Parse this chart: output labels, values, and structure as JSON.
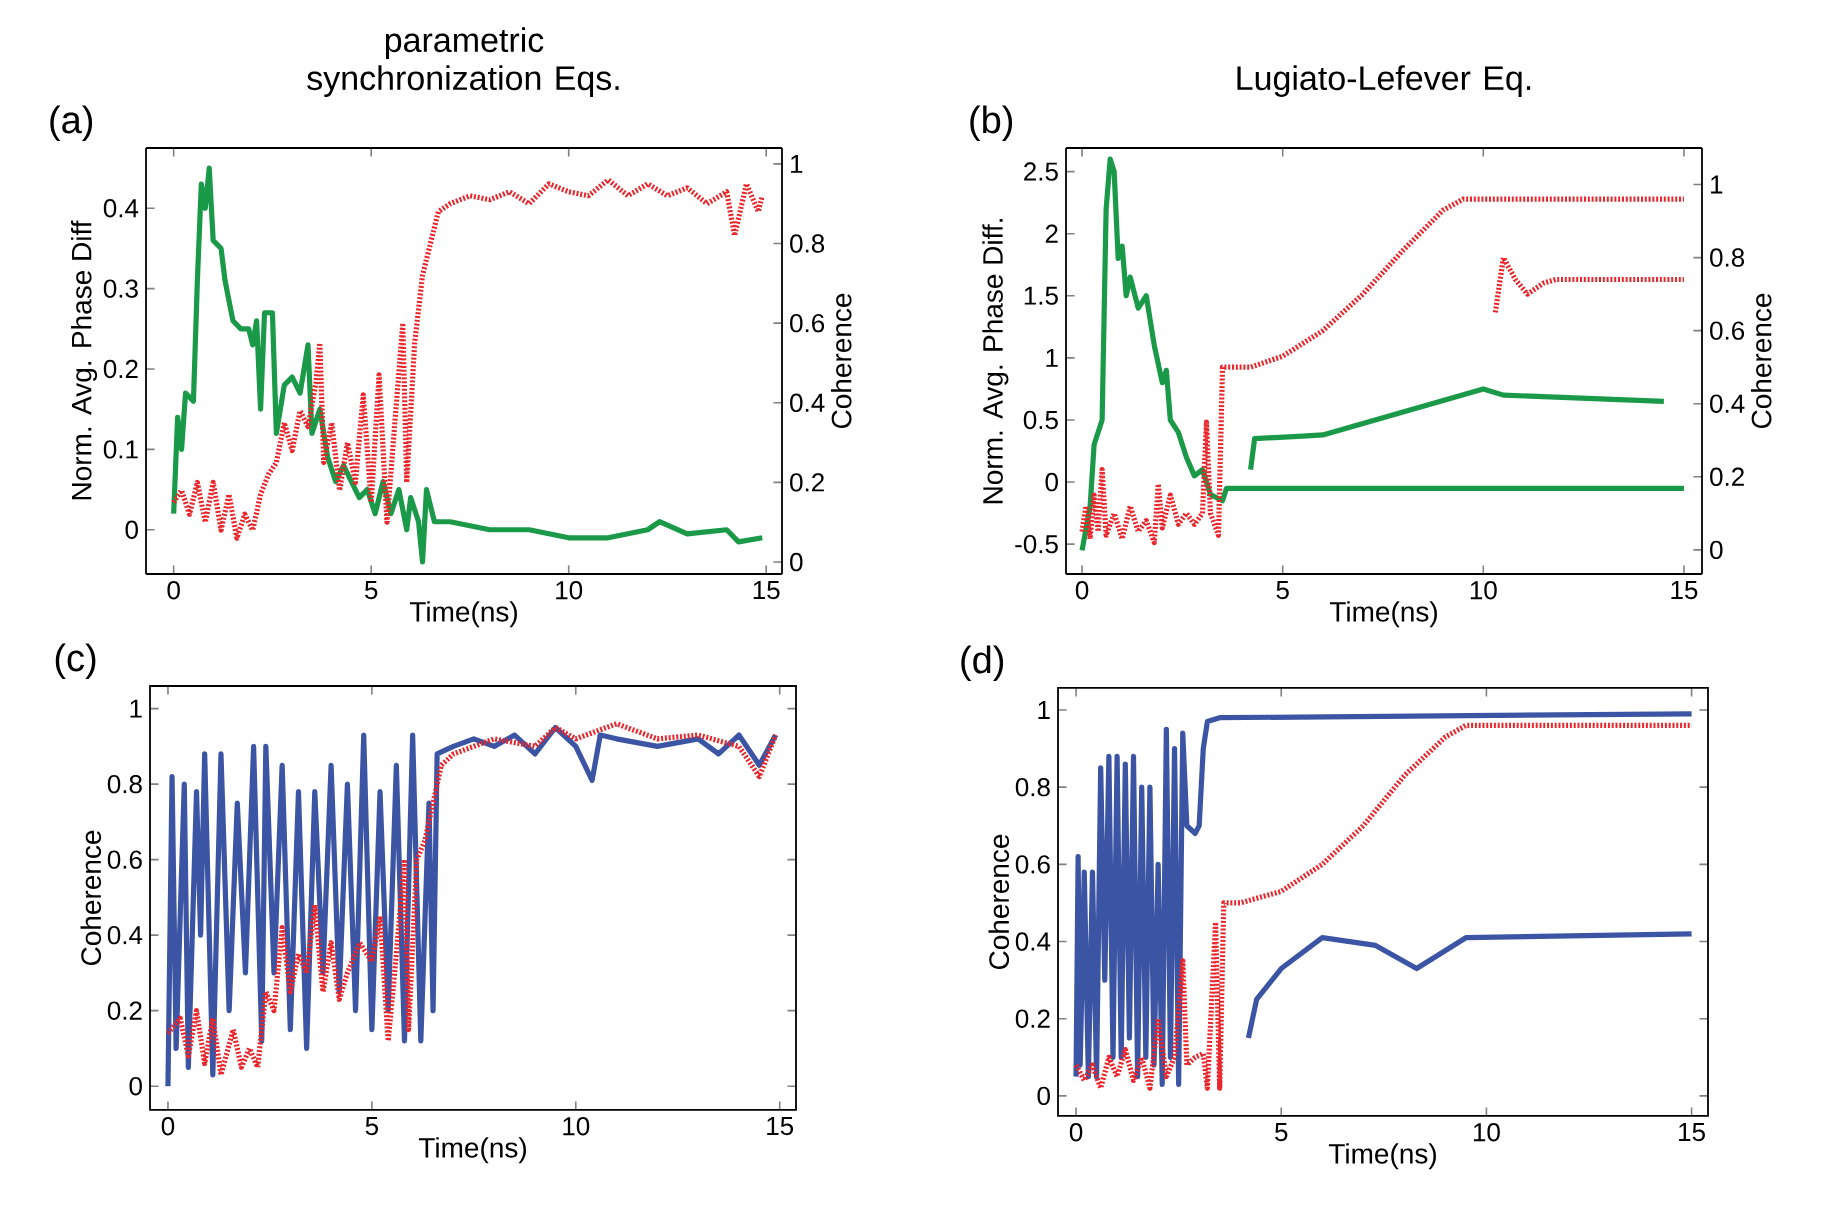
{
  "chart_data": [
    {
      "type": "line",
      "title": "parametric synchronization Eqs.",
      "xlabel": "Time(ns)",
      "ylabel": "Norm. Avg. Phase Diff",
      "y2label": "Coherence",
      "annotations": [
        "(a)"
      ],
      "xlim": [
        -0.7,
        15.4
      ],
      "ylim": [
        -0.055,
        0.475
      ],
      "y2lim": [
        -0.03,
        1.04
      ],
      "xticks": [
        0,
        5,
        10,
        15
      ],
      "yticks": [
        0,
        0.1,
        0.2,
        0.3,
        0.4
      ],
      "y2ticks": [
        0,
        0.2,
        0.4,
        0.6,
        0.8,
        1
      ],
      "series": [
        {
          "color": "#1a9a48",
          "line_style": "solid",
          "x": [
            0,
            0.1,
            0.2,
            0.3,
            0.5,
            0.6,
            0.7,
            0.8,
            0.9,
            1.0,
            1.2,
            1.3,
            1.5,
            1.7,
            1.9,
            2.0,
            2.1,
            2.2,
            2.3,
            2.5,
            2.6,
            2.8,
            3.0,
            3.2,
            3.4,
            3.5,
            3.7,
            3.9,
            4.1,
            4.3,
            4.5,
            4.7,
            4.9,
            5.1,
            5.3,
            5.5,
            5.7,
            5.9,
            6.0,
            6.2,
            6.3,
            6.4,
            6.6,
            7,
            8,
            9,
            10,
            11,
            12,
            12.3,
            13,
            14,
            14.3,
            14.9
          ],
          "values": [
            0.02,
            0.14,
            0.1,
            0.17,
            0.16,
            0.31,
            0.43,
            0.4,
            0.45,
            0.36,
            0.35,
            0.31,
            0.26,
            0.25,
            0.25,
            0.23,
            0.26,
            0.15,
            0.27,
            0.27,
            0.12,
            0.18,
            0.19,
            0.17,
            0.23,
            0.12,
            0.15,
            0.09,
            0.06,
            0.08,
            0.06,
            0.04,
            0.05,
            0.02,
            0.06,
            0.02,
            0.05,
            0.0,
            0.04,
            0.01,
            -0.04,
            0.05,
            0.01,
            0.01,
            0.0,
            0.0,
            -0.01,
            -0.01,
            0.0,
            0.01,
            -0.005,
            0.0,
            -0.015,
            -0.01
          ]
        },
        {
          "color": "#e8262b",
          "line_style": "dotted",
          "axis": "y2",
          "x": [
            0,
            0.2,
            0.4,
            0.6,
            0.8,
            1.0,
            1.2,
            1.4,
            1.6,
            1.8,
            2.0,
            2.2,
            2.4,
            2.6,
            2.8,
            3.0,
            3.2,
            3.4,
            3.6,
            3.7,
            3.8,
            4.0,
            4.2,
            4.4,
            4.6,
            4.8,
            5.0,
            5.2,
            5.4,
            5.6,
            5.8,
            5.9,
            6.1,
            6.3,
            6.5,
            6.7,
            7,
            7.5,
            8,
            8.5,
            9,
            9.5,
            10,
            10.5,
            11,
            11.5,
            12,
            12.5,
            13,
            13.5,
            14,
            14.2,
            14.5,
            14.8,
            14.9
          ],
          "values": [
            0.15,
            0.18,
            0.12,
            0.2,
            0.1,
            0.2,
            0.08,
            0.17,
            0.06,
            0.12,
            0.08,
            0.17,
            0.22,
            0.25,
            0.35,
            0.28,
            0.38,
            0.34,
            0.45,
            0.55,
            0.25,
            0.35,
            0.18,
            0.3,
            0.2,
            0.42,
            0.15,
            0.47,
            0.1,
            0.35,
            0.6,
            0.2,
            0.55,
            0.72,
            0.8,
            0.88,
            0.9,
            0.92,
            0.91,
            0.93,
            0.9,
            0.95,
            0.93,
            0.92,
            0.96,
            0.92,
            0.95,
            0.92,
            0.94,
            0.9,
            0.93,
            0.82,
            0.95,
            0.88,
            0.92
          ]
        }
      ]
    },
    {
      "type": "line",
      "title": "Lugiato-Lefever Eq.",
      "xlabel": "Time(ns)",
      "ylabel": "Norm. Avg. Phase Diff.",
      "y2label": "Coherence",
      "annotations": [
        "(b)"
      ],
      "xlim": [
        -0.4,
        15.45
      ],
      "ylim": [
        -0.74,
        2.69
      ],
      "y2lim": [
        -0.066,
        1.1
      ],
      "xticks": [
        0,
        5,
        10,
        15
      ],
      "yticks": [
        -0.5,
        0,
        0.5,
        1,
        1.5,
        2,
        2.5
      ],
      "y2ticks": [
        0,
        0.2,
        0.4,
        0.6,
        0.8,
        1
      ],
      "series": [
        {
          "color": "#1a9a48",
          "line_style": "solid",
          "x": [
            0,
            0.2,
            0.3,
            0.5,
            0.6,
            0.7,
            0.8,
            0.9,
            1.0,
            1.1,
            1.2,
            1.4,
            1.6,
            1.7,
            1.8,
            2.0,
            2.1,
            2.2,
            2.4,
            2.6,
            2.8,
            3.0,
            3.2,
            3.5,
            3.6,
            4,
            15
          ],
          "values": [
            -0.55,
            -0.2,
            0.3,
            0.5,
            2.2,
            2.6,
            2.5,
            1.8,
            1.9,
            1.5,
            1.65,
            1.4,
            1.5,
            1.3,
            1.1,
            0.8,
            0.9,
            0.5,
            0.4,
            0.2,
            0.05,
            0.1,
            -0.1,
            -0.15,
            -0.05,
            -0.05,
            -0.05
          ]
        },
        {
          "color": "#e8262b",
          "line_style": "dotted",
          "axis": "y2",
          "x": [
            0,
            0.1,
            0.2,
            0.3,
            0.4,
            0.5,
            0.6,
            0.8,
            1.0,
            1.2,
            1.4,
            1.6,
            1.8,
            1.9,
            2.0,
            2.2,
            2.4,
            2.6,
            2.8,
            3.0,
            3.1,
            3.2,
            3.4,
            3.5,
            3.7,
            4.2,
            5,
            6,
            7,
            8,
            9,
            9.5,
            15
          ],
          "values": [
            0.05,
            0.12,
            0.03,
            0.15,
            0.05,
            0.22,
            0.04,
            0.1,
            0.03,
            0.12,
            0.05,
            0.08,
            0.02,
            0.18,
            0.06,
            0.15,
            0.07,
            0.1,
            0.07,
            0.1,
            0.35,
            0.1,
            0.04,
            0.5,
            0.5,
            0.5,
            0.53,
            0.6,
            0.7,
            0.82,
            0.93,
            0.96,
            0.96
          ]
        },
        {
          "color": "#1a9a48",
          "line_style": "solid",
          "x": [
            4.2,
            4.3,
            5.5,
            6,
            10,
            10.5,
            14.5
          ],
          "values": [
            0.1,
            0.35,
            0.37,
            0.38,
            0.75,
            0.7,
            0.65
          ]
        },
        {
          "color": "#e8262b",
          "line_style": "dotted",
          "axis": "y2",
          "x": [
            10.3,
            10.5,
            10.8,
            11.1,
            11.5,
            11.8,
            15
          ],
          "values": [
            0.65,
            0.8,
            0.74,
            0.7,
            0.73,
            0.74,
            0.74
          ]
        }
      ]
    },
    {
      "type": "line",
      "xlabel": "Time(ns)",
      "ylabel": "Coherence",
      "annotations": [
        "(c)"
      ],
      "xlim": [
        -0.44,
        15.4
      ],
      "ylim": [
        -0.063,
        1.06
      ],
      "xticks": [
        0,
        5,
        10,
        15
      ],
      "yticks": [
        0,
        0.2,
        0.4,
        0.6,
        0.8,
        1
      ],
      "series": [
        {
          "color": "#3b55a4",
          "line_style": "solid",
          "x": [
            0,
            0.1,
            0.2,
            0.4,
            0.5,
            0.7,
            0.8,
            0.9,
            1.1,
            1.3,
            1.5,
            1.7,
            1.9,
            2.1,
            2.3,
            2.4,
            2.6,
            2.8,
            3.0,
            3.2,
            3.4,
            3.6,
            3.8,
            4.0,
            4.2,
            4.4,
            4.6,
            4.8,
            5.0,
            5.2,
            5.4,
            5.6,
            5.8,
            6.0,
            6.2,
            6.4,
            6.5,
            6.6,
            7,
            7.5,
            8,
            8.5,
            9,
            9.5,
            10,
            10.4,
            10.6,
            11,
            12,
            13,
            13.5,
            14,
            14.5,
            14.9
          ],
          "values": [
            0.0,
            0.82,
            0.1,
            0.8,
            0.05,
            0.78,
            0.4,
            0.88,
            0.03,
            0.88,
            0.2,
            0.75,
            0.3,
            0.9,
            0.12,
            0.9,
            0.3,
            0.85,
            0.15,
            0.78,
            0.1,
            0.78,
            0.3,
            0.85,
            0.25,
            0.8,
            0.2,
            0.93,
            0.15,
            0.78,
            0.2,
            0.85,
            0.12,
            0.93,
            0.12,
            0.75,
            0.2,
            0.88,
            0.9,
            0.92,
            0.9,
            0.93,
            0.88,
            0.95,
            0.9,
            0.81,
            0.93,
            0.92,
            0.9,
            0.92,
            0.88,
            0.93,
            0.85,
            0.93
          ]
        },
        {
          "color": "#e8262b",
          "line_style": "dotted",
          "x": [
            0,
            0.3,
            0.5,
            0.7,
            0.9,
            1.1,
            1.3,
            1.6,
            1.8,
            2.0,
            2.2,
            2.4,
            2.6,
            2.8,
            3.0,
            3.2,
            3.4,
            3.6,
            3.8,
            4.0,
            4.2,
            4.4,
            4.7,
            5.0,
            5.2,
            5.4,
            5.6,
            5.8,
            5.9,
            6.1,
            6.3,
            6.5,
            6.7,
            7,
            7.5,
            8,
            9,
            9.5,
            10,
            11,
            12,
            13,
            14,
            14.5,
            14.9
          ],
          "values": [
            0.14,
            0.18,
            0.08,
            0.2,
            0.06,
            0.18,
            0.03,
            0.15,
            0.05,
            0.1,
            0.05,
            0.25,
            0.2,
            0.42,
            0.25,
            0.35,
            0.3,
            0.48,
            0.25,
            0.38,
            0.23,
            0.3,
            0.38,
            0.33,
            0.45,
            0.12,
            0.35,
            0.6,
            0.15,
            0.6,
            0.65,
            0.75,
            0.85,
            0.88,
            0.9,
            0.92,
            0.9,
            0.95,
            0.92,
            0.96,
            0.92,
            0.93,
            0.9,
            0.82,
            0.93
          ]
        }
      ]
    },
    {
      "type": "line",
      "xlabel": "Time(ns)",
      "ylabel": "Coherence",
      "annotations": [
        "(d)"
      ],
      "xlim": [
        -0.44,
        15.4
      ],
      "ylim": [
        -0.052,
        1.057
      ],
      "xticks": [
        0,
        5,
        10,
        15
      ],
      "yticks": [
        0,
        0.2,
        0.4,
        0.6,
        0.8,
        1
      ],
      "series": [
        {
          "color": "#3b55a4",
          "line_style": "solid",
          "x": [
            0,
            0.05,
            0.1,
            0.2,
            0.3,
            0.4,
            0.5,
            0.6,
            0.7,
            0.8,
            0.9,
            1.0,
            1.1,
            1.2,
            1.3,
            1.4,
            1.5,
            1.6,
            1.7,
            1.8,
            1.9,
            2.0,
            2.1,
            2.2,
            2.3,
            2.4,
            2.5,
            2.6,
            2.7,
            2.9,
            3.0,
            3.1,
            3.2,
            3.5,
            15
          ],
          "values": [
            0.05,
            0.62,
            0.08,
            0.58,
            0.05,
            0.58,
            0.05,
            0.85,
            0.3,
            0.88,
            0.1,
            0.88,
            0.1,
            0.86,
            0.15,
            0.88,
            0.05,
            0.8,
            0.1,
            0.8,
            0.08,
            0.6,
            0.03,
            0.95,
            0.1,
            0.9,
            0.03,
            0.94,
            0.7,
            0.68,
            0.7,
            0.9,
            0.97,
            0.98,
            0.99
          ]
        },
        {
          "color": "#e8262b",
          "line_style": "dotted",
          "x": [
            0,
            0.2,
            0.4,
            0.6,
            0.8,
            1.0,
            1.2,
            1.4,
            1.6,
            1.8,
            2.0,
            2.2,
            2.4,
            2.6,
            2.7,
            2.9,
            3.1,
            3.2,
            3.4,
            3.5,
            3.6,
            4,
            5,
            6,
            7,
            8,
            9,
            9.5,
            15
          ],
          "values": [
            0.08,
            0.04,
            0.08,
            0.02,
            0.1,
            0.05,
            0.12,
            0.04,
            0.1,
            0.02,
            0.2,
            0.05,
            0.1,
            0.35,
            0.08,
            0.1,
            0.11,
            0.02,
            0.45,
            0.02,
            0.5,
            0.5,
            0.53,
            0.6,
            0.7,
            0.83,
            0.93,
            0.96,
            0.96
          ]
        },
        {
          "color": "#3b55a4",
          "line_style": "solid",
          "x": [
            4.2,
            4.4,
            5,
            6,
            7.3,
            8.3,
            9.5,
            15
          ],
          "values": [
            0.15,
            0.25,
            0.33,
            0.41,
            0.39,
            0.33,
            0.41,
            0.42
          ]
        }
      ]
    }
  ]
}
